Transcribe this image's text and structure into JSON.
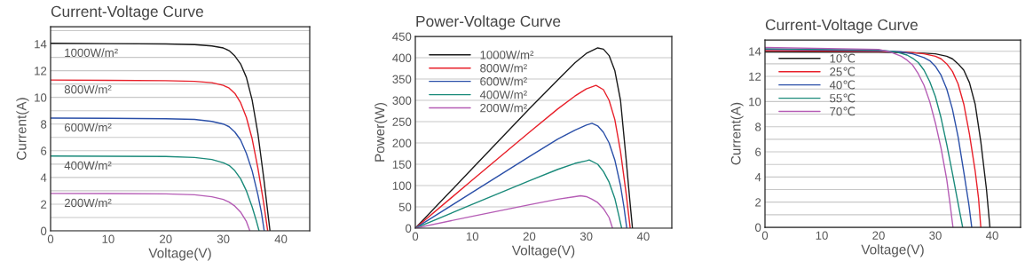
{
  "chart_data": [
    {
      "type": "line",
      "title": "Current-Voltage Curve",
      "xlabel": "Voltage(V)",
      "ylabel": "Current(A)",
      "xlim": [
        0,
        45
      ],
      "xticks": [
        0,
        10,
        20,
        30,
        40
      ],
      "ylim": [
        0,
        15.3
      ],
      "yticks": [
        0,
        {
          "value": 1,
          "label": null
        },
        2,
        {
          "value": 3,
          "label": null
        },
        4,
        {
          "value": 5,
          "label": null
        },
        6,
        {
          "value": 7,
          "label": null
        },
        8,
        {
          "value": 9,
          "label": null
        },
        10,
        {
          "value": 11,
          "label": null
        },
        12,
        {
          "value": 13,
          "label": null
        },
        14,
        {
          "value": 15,
          "label": null
        }
      ],
      "grid": "y",
      "legend": false,
      "series": [
        {
          "name": "1000W/m²",
          "color": "#1a1a1a",
          "x": [
            0,
            10,
            20,
            25,
            28,
            30,
            31,
            32,
            33,
            34,
            35,
            36,
            37,
            37.6,
            38.1
          ],
          "values": [
            14.05,
            14.03,
            14.0,
            13.95,
            13.85,
            13.7,
            13.5,
            13.1,
            12.5,
            11.5,
            9.8,
            7.3,
            4.0,
            1.8,
            0
          ]
        },
        {
          "name": "800W/m²",
          "color": "#e8202a",
          "x": [
            0,
            10,
            20,
            25,
            28,
            30,
            31,
            32,
            33,
            34,
            35,
            36,
            37,
            37.7
          ],
          "values": [
            11.3,
            11.28,
            11.25,
            11.2,
            11.1,
            10.9,
            10.7,
            10.3,
            9.6,
            8.5,
            6.9,
            4.7,
            2.1,
            0
          ]
        },
        {
          "name": "600W/m²",
          "color": "#2a4fa8",
          "x": [
            0,
            10,
            20,
            25,
            28,
            30,
            31,
            32,
            33,
            34,
            35,
            36,
            36.6,
            37.1
          ],
          "values": [
            8.45,
            8.43,
            8.4,
            8.35,
            8.2,
            8.0,
            7.8,
            7.4,
            6.8,
            5.8,
            4.5,
            2.7,
            1.4,
            0
          ]
        },
        {
          "name": "400W/m²",
          "color": "#1a8a7a",
          "x": [
            0,
            10,
            20,
            25,
            28,
            30,
            31,
            32,
            33,
            34,
            35,
            35.7,
            36.2
          ],
          "values": [
            5.6,
            5.59,
            5.57,
            5.5,
            5.35,
            5.1,
            4.9,
            4.5,
            3.9,
            3.0,
            1.8,
            0.8,
            0
          ]
        },
        {
          "name": "200W/m²",
          "color": "#b55cb5",
          "x": [
            0,
            10,
            20,
            25,
            28,
            30,
            31,
            32,
            33,
            34,
            34.6
          ],
          "values": [
            2.8,
            2.79,
            2.77,
            2.7,
            2.55,
            2.35,
            2.15,
            1.85,
            1.4,
            0.7,
            0
          ]
        }
      ]
    },
    {
      "type": "line",
      "title": "Power-Voltage Curve",
      "xlabel": "Voltage(V)",
      "ylabel": "Power(W)",
      "xlim": [
        0,
        45
      ],
      "xticks": [
        0,
        10,
        20,
        30,
        40
      ],
      "ylim": [
        0,
        450
      ],
      "yticks": [
        0,
        50,
        100,
        150,
        200,
        250,
        300,
        350,
        400,
        450
      ],
      "grid": "y",
      "legend": "top left",
      "series": [
        {
          "name": "1000W/m²",
          "color": "#1a1a1a",
          "x": [
            0,
            10,
            20,
            25,
            28,
            30,
            32,
            33,
            34,
            35,
            36,
            37,
            37.6,
            38.1
          ],
          "values": [
            0,
            140,
            280,
            348,
            388,
            410,
            423,
            420,
            405,
            370,
            300,
            160,
            70,
            0
          ]
        },
        {
          "name": "800W/m²",
          "color": "#e8202a",
          "x": [
            0,
            10,
            20,
            25,
            28,
            30,
            31.7,
            33,
            34,
            35,
            36,
            37,
            37.7
          ],
          "values": [
            0,
            113,
            225,
            280,
            310,
            327,
            335,
            325,
            300,
            255,
            180,
            80,
            0
          ]
        },
        {
          "name": "600W/m²",
          "color": "#2a4fa8",
          "x": [
            0,
            10,
            20,
            25,
            28,
            30,
            31,
            32,
            33,
            34,
            35,
            36,
            36.6,
            37.1
          ],
          "values": [
            0,
            84,
            168,
            209,
            230,
            242,
            246,
            240,
            225,
            200,
            160,
            100,
            50,
            0
          ]
        },
        {
          "name": "400W/m²",
          "color": "#1a8a7a",
          "x": [
            0,
            10,
            20,
            25,
            28,
            30,
            30.5,
            32,
            33,
            34,
            35,
            35.7,
            36.2
          ],
          "values": [
            0,
            56,
            111,
            138,
            152,
            158,
            160,
            150,
            133,
            108,
            70,
            30,
            0
          ]
        },
        {
          "name": "200W/m²",
          "color": "#b55cb5",
          "x": [
            0,
            10,
            20,
            25,
            28,
            29,
            30,
            31,
            32,
            33,
            34,
            34.6
          ],
          "values": [
            0,
            28,
            55,
            68,
            74,
            76,
            74,
            68,
            60,
            46,
            25,
            0
          ]
        }
      ]
    },
    {
      "type": "line",
      "title": "Current-Voltage Curve",
      "xlabel": "Voltage(V)",
      "ylabel": "Current(A)",
      "xlim": [
        0,
        45
      ],
      "xticks": [
        0,
        10,
        20,
        30,
        40
      ],
      "ylim": [
        0,
        14.9
      ],
      "yticks": [
        0,
        {
          "value": 1,
          "label": null
        },
        2,
        {
          "value": 3,
          "label": null
        },
        4,
        {
          "value": 5,
          "label": null
        },
        6,
        {
          "value": 7,
          "label": null
        },
        8,
        {
          "value": 9,
          "label": null
        },
        10,
        {
          "value": 11,
          "label": null
        },
        12,
        {
          "value": 13,
          "label": null
        },
        14
      ],
      "grid": "y",
      "legend": "top left",
      "series": [
        {
          "name": "10℃",
          "color": "#1a1a1a",
          "x": [
            0,
            20,
            28,
            30,
            32,
            33,
            34,
            35,
            36,
            37,
            38,
            39,
            39.6
          ],
          "values": [
            13.95,
            13.92,
            13.85,
            13.8,
            13.6,
            13.4,
            13.0,
            12.5,
            11.5,
            9.8,
            6.8,
            3.0,
            0
          ]
        },
        {
          "name": "25℃",
          "color": "#e8202a",
          "x": [
            0,
            20,
            26,
            28,
            30,
            31,
            32,
            33,
            34,
            35,
            36,
            37,
            37.6,
            38.0
          ],
          "values": [
            14.05,
            14.0,
            13.9,
            13.8,
            13.6,
            13.4,
            13.0,
            12.4,
            11.4,
            9.8,
            7.4,
            4.5,
            2.3,
            0
          ]
        },
        {
          "name": "40℃",
          "color": "#2a4fa8",
          "x": [
            0,
            20,
            24,
            26,
            28,
            29,
            30,
            31,
            32,
            33,
            34,
            35,
            35.9,
            36.4
          ],
          "values": [
            14.15,
            14.05,
            13.95,
            13.8,
            13.5,
            13.25,
            12.8,
            12.1,
            11.0,
            9.4,
            7.2,
            4.4,
            1.8,
            0
          ]
        },
        {
          "name": "55℃",
          "color": "#1a8a7a",
          "x": [
            0,
            20,
            23,
            25,
            26,
            27,
            28,
            29,
            30,
            31,
            32,
            33,
            34,
            34.8
          ],
          "values": [
            14.2,
            14.1,
            13.95,
            13.7,
            13.45,
            13.1,
            12.5,
            11.6,
            10.4,
            8.7,
            6.6,
            4.3,
            1.9,
            0
          ]
        },
        {
          "name": "70℃",
          "color": "#b55cb5",
          "x": [
            0,
            20,
            22,
            24,
            25,
            26,
            27,
            28,
            29,
            30,
            31,
            32,
            32.6,
            33.1
          ],
          "values": [
            14.3,
            14.15,
            13.95,
            13.6,
            13.3,
            12.9,
            12.2,
            11.3,
            10.0,
            8.3,
            6.3,
            3.8,
            1.8,
            0
          ]
        }
      ]
    }
  ]
}
